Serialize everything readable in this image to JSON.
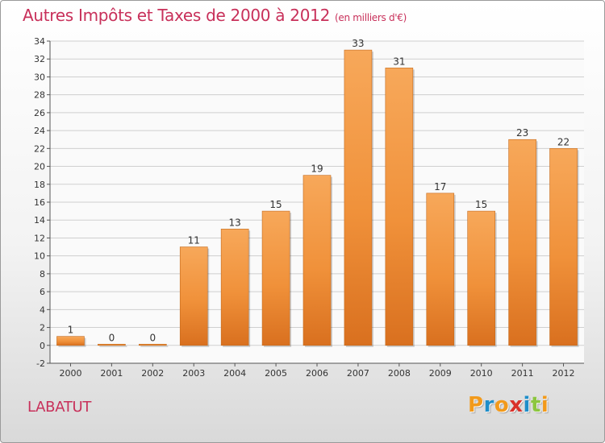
{
  "header": {
    "title": "Autres Impôts et Taxes de 2000 à 2012",
    "unit": "(en milliers d'€)"
  },
  "location": "LABATUT",
  "logo": {
    "letters": [
      "P",
      "r",
      "o",
      "x",
      "i",
      "t",
      "i"
    ],
    "colors": [
      "#f29a1b",
      "#1f8ec9",
      "#f29a1b",
      "#d9312b",
      "#1f8ec9",
      "#8cc63f",
      "#f29a1b"
    ]
  },
  "chart_data": {
    "type": "bar",
    "categories": [
      "2000",
      "2001",
      "2002",
      "2003",
      "2004",
      "2005",
      "2006",
      "2007",
      "2008",
      "2009",
      "2010",
      "2011",
      "2012"
    ],
    "values": [
      1,
      0,
      0,
      11,
      13,
      15,
      19,
      33,
      31,
      17,
      15,
      23,
      22
    ],
    "data_labels": [
      "1",
      "0",
      "0",
      "11",
      "13",
      "15",
      "19",
      "33",
      "31",
      "17",
      "15",
      "23",
      "22"
    ],
    "ylim": [
      -2,
      34
    ],
    "yticks": [
      -2,
      0,
      2,
      4,
      6,
      8,
      10,
      12,
      14,
      16,
      18,
      20,
      22,
      24,
      26,
      28,
      30,
      32,
      34
    ],
    "grid": true,
    "colors": {
      "bar": "#f0913a",
      "bar_light": "#f7a85a",
      "bar_dark": "#d9701f",
      "grid": "#cfcfcf"
    }
  }
}
